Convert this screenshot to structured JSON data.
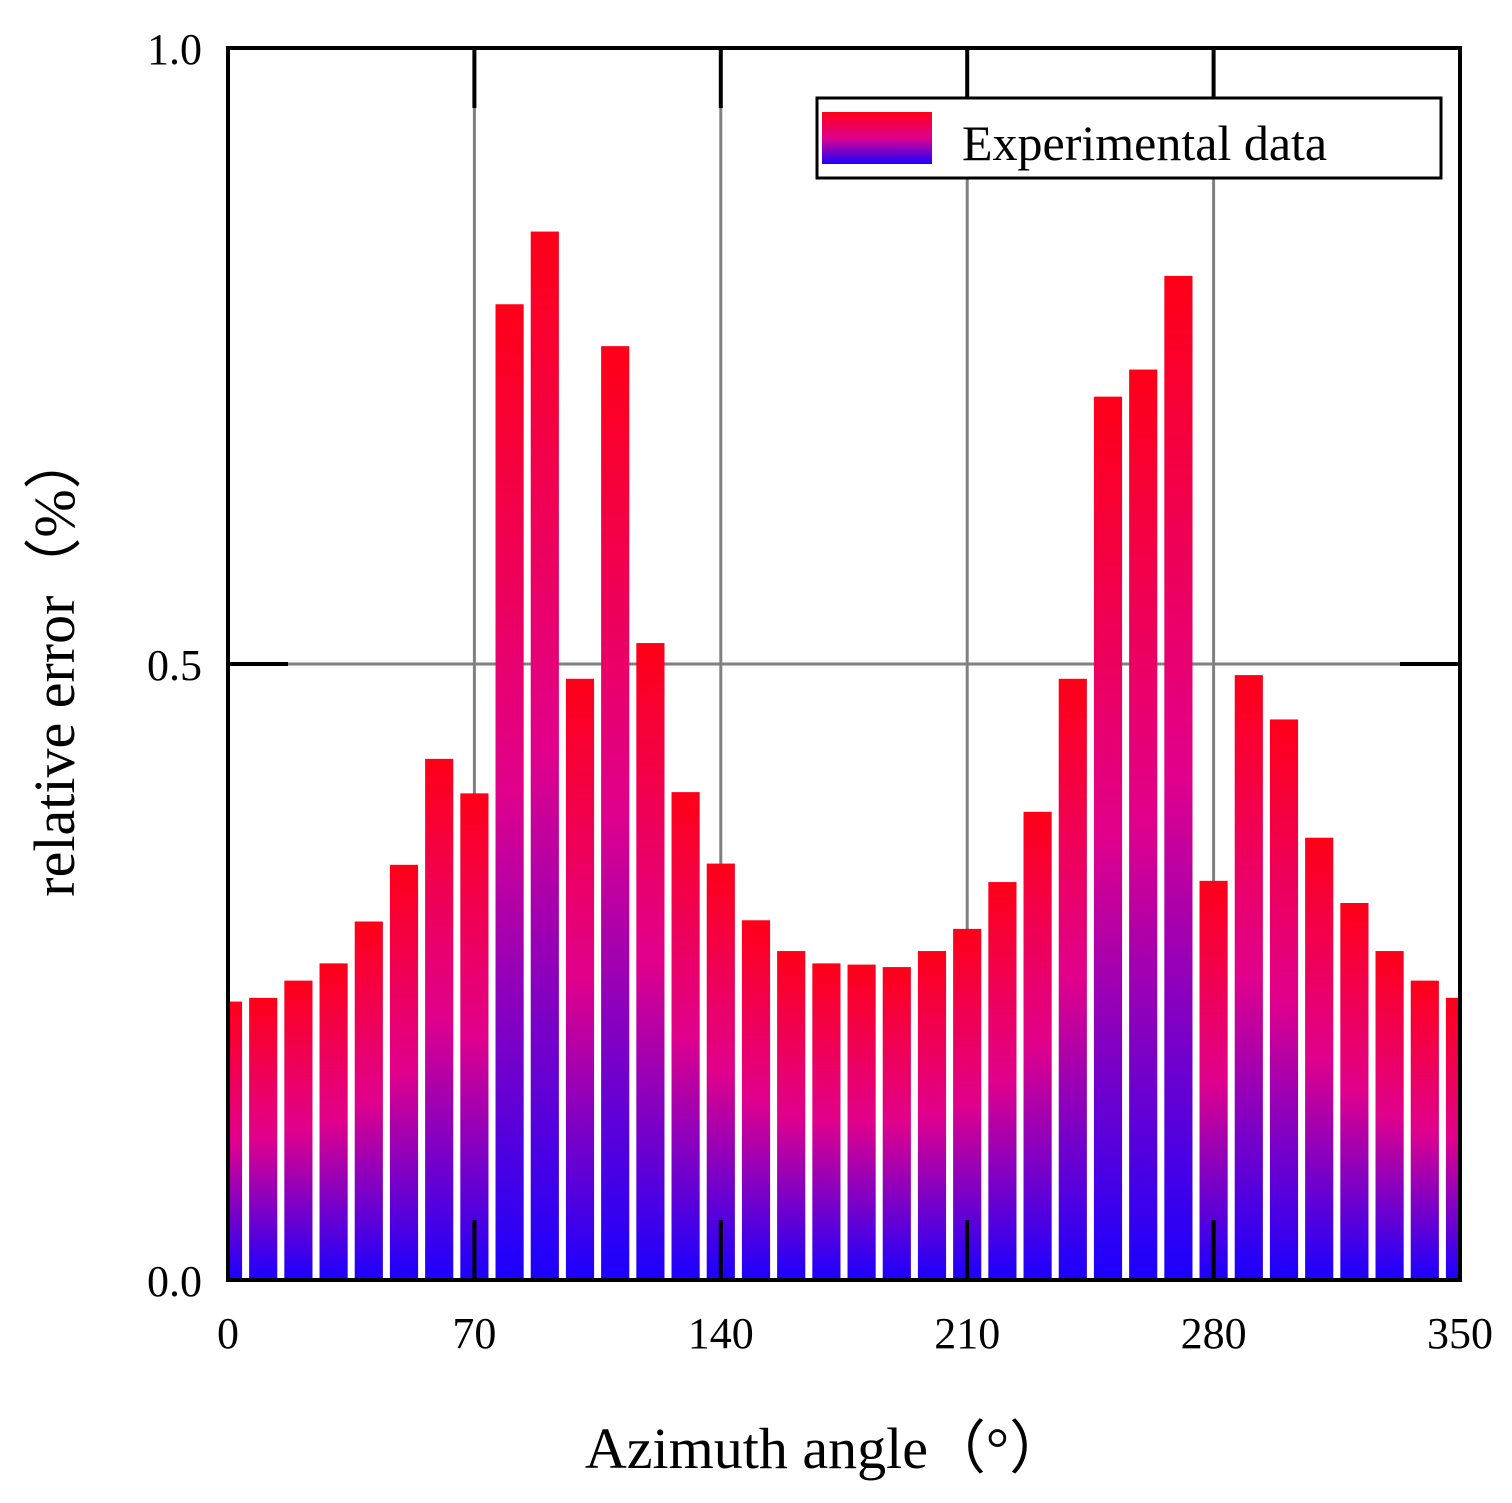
{
  "chart_data": {
    "type": "bar",
    "title": "",
    "xlabel": "Azimuth angle（°）",
    "ylabel": "relative error（%）",
    "xlim": [
      0,
      350
    ],
    "ylim": [
      0,
      1.0
    ],
    "x_ticks": [
      "0",
      "70",
      "140",
      "210",
      "280",
      "350"
    ],
    "y_ticks": [
      "0.0",
      "0.5",
      "1.0"
    ],
    "grid": true,
    "legend": {
      "position": "top-right",
      "entries": [
        "Experimental data"
      ]
    },
    "colors": {
      "bar_top": "#ff0018",
      "bar_mid": "#e0008c",
      "bar_bottom": "#1a00ff",
      "grid": "#808080",
      "axis": "#000000"
    },
    "series": [
      {
        "name": "Experimental data",
        "x": [
          0,
          10,
          20,
          30,
          40,
          50,
          60,
          70,
          80,
          90,
          100,
          110,
          120,
          130,
          140,
          150,
          160,
          170,
          180,
          190,
          200,
          210,
          220,
          230,
          240,
          250,
          260,
          270,
          280,
          290,
          300,
          310,
          320,
          330,
          340,
          350
        ],
        "values": [
          0.226,
          0.229,
          0.243,
          0.257,
          0.291,
          0.337,
          0.423,
          0.395,
          0.792,
          0.851,
          0.488,
          0.758,
          0.517,
          0.396,
          0.338,
          0.292,
          0.267,
          0.257,
          0.256,
          0.254,
          0.267,
          0.285,
          0.323,
          0.38,
          0.488,
          0.717,
          0.739,
          0.815,
          0.324,
          0.491,
          0.455,
          0.359,
          0.306,
          0.267,
          0.243,
          0.229
        ]
      }
    ]
  }
}
